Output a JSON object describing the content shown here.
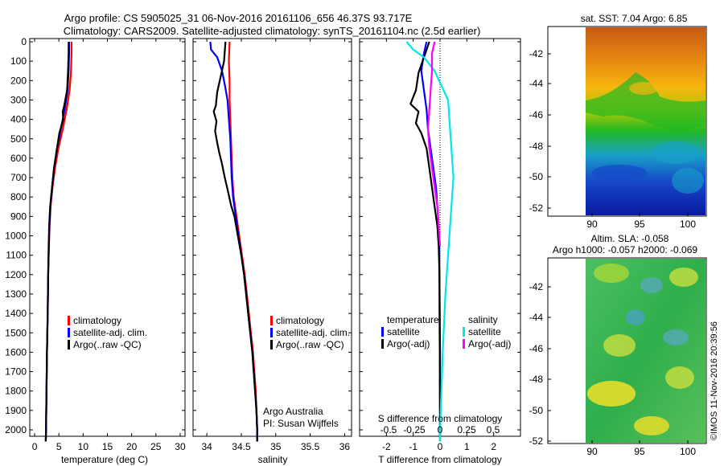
{
  "header": {
    "line1": "Argo profile: CS 5905025_31 06-Nov-2016 20161106_656 46.37S 93.717E",
    "line2": "Climatology: CARS2009. Satellite-adjusted climatology: synTS_20161104.nc (2.5d earlier)"
  },
  "colors": {
    "clim": "#ff0000",
    "sat": "#0000ff",
    "argo": "#000000",
    "sat_s": "#00e5ee",
    "argo_s": "#ff00ff"
  },
  "chart_data": [
    {
      "id": "temperature",
      "type": "line",
      "xlabel": "temperature (deg C)",
      "xlim": [
        -1,
        31
      ],
      "xticks": [
        "0",
        "5",
        "10",
        "15",
        "20",
        "25",
        "30"
      ],
      "ylim": [
        0,
        2080
      ],
      "yticks": [
        "0",
        "100",
        "200",
        "300",
        "400",
        "500",
        "600",
        "700",
        "800",
        "900",
        "1000",
        "1100",
        "1200",
        "1300",
        "1400",
        "1500",
        "1600",
        "1700",
        "1800",
        "1900",
        "2000"
      ],
      "legend": [
        "climatology",
        "satellite-adj. clim.",
        "Argo(..raw -QC)"
      ],
      "series": [
        {
          "name": "climatology",
          "color": "#ff0000",
          "points": [
            [
              7.6,
              0
            ],
            [
              7.6,
              60
            ],
            [
              7.5,
              150
            ],
            [
              7.2,
              250
            ],
            [
              6.6,
              350
            ],
            [
              5.8,
              450
            ],
            [
              4.9,
              550
            ],
            [
              4.2,
              650
            ],
            [
              3.7,
              750
            ],
            [
              3.3,
              850
            ],
            [
              3.1,
              950
            ],
            [
              2.95,
              1050
            ],
            [
              2.8,
              1200
            ],
            [
              2.7,
              1400
            ],
            [
              2.55,
              1600
            ],
            [
              2.45,
              1800
            ],
            [
              2.35,
              2000
            ],
            [
              2.3,
              2060
            ]
          ]
        },
        {
          "name": "satellite-adj. clim.",
          "color": "#0000ff",
          "points": [
            [
              7.1,
              0
            ],
            [
              7.1,
              60
            ],
            [
              7.0,
              150
            ],
            [
              6.8,
              250
            ],
            [
              6.2,
              350
            ],
            [
              5.4,
              450
            ],
            [
              4.6,
              550
            ],
            [
              4.0,
              650
            ],
            [
              3.6,
              750
            ],
            [
              3.25,
              850
            ],
            [
              3.05,
              950
            ],
            [
              2.95,
              1050
            ],
            [
              2.8,
              1200
            ],
            [
              2.7,
              1400
            ],
            [
              2.55,
              1600
            ],
            [
              2.45,
              1800
            ],
            [
              2.35,
              2000
            ],
            [
              2.3,
              2060
            ]
          ]
        },
        {
          "name": "Argo(..raw -QC)",
          "color": "#000000",
          "points": [
            [
              7.0,
              0
            ],
            [
              7.0,
              60
            ],
            [
              6.9,
              150
            ],
            [
              6.7,
              250
            ],
            [
              6.1,
              330
            ],
            [
              5.8,
              360
            ],
            [
              5.9,
              400
            ],
            [
              5.1,
              470
            ],
            [
              4.6,
              550
            ],
            [
              4.0,
              650
            ],
            [
              3.6,
              750
            ],
            [
              3.2,
              850
            ],
            [
              3.0,
              950
            ],
            [
              2.9,
              1050
            ],
            [
              2.8,
              1200
            ],
            [
              2.7,
              1400
            ],
            [
              2.55,
              1600
            ],
            [
              2.45,
              1800
            ],
            [
              2.35,
              2000
            ],
            [
              2.3,
              2060
            ]
          ]
        }
      ]
    },
    {
      "id": "salinity",
      "type": "line",
      "xlabel": "salinity",
      "xlim": [
        33.8,
        36.1
      ],
      "xticks": [
        "34",
        "34.5",
        "35",
        "35.5",
        "36"
      ],
      "ylim": [
        0,
        2080
      ],
      "legend": [
        "climatology",
        "satellite-adj. clim.",
        "Argo(..raw -QC)"
      ],
      "annotations": [
        "Argo Australia",
        "PI: Susan Wijffels"
      ],
      "series": [
        {
          "name": "climatology",
          "color": "#ff0000",
          "points": [
            [
              34.33,
              0
            ],
            [
              34.32,
              100
            ],
            [
              34.33,
              200
            ],
            [
              34.33,
              300
            ],
            [
              34.34,
              400
            ],
            [
              34.35,
              500
            ],
            [
              34.36,
              600
            ],
            [
              34.37,
              700
            ],
            [
              34.39,
              800
            ],
            [
              34.43,
              900
            ],
            [
              34.47,
              1000
            ],
            [
              34.51,
              1100
            ],
            [
              34.55,
              1200
            ],
            [
              34.58,
              1300
            ],
            [
              34.61,
              1400
            ],
            [
              34.64,
              1500
            ],
            [
              34.67,
              1600
            ],
            [
              34.69,
              1700
            ],
            [
              34.71,
              1800
            ],
            [
              34.72,
              1900
            ],
            [
              34.73,
              2000
            ],
            [
              34.73,
              2060
            ]
          ]
        },
        {
          "name": "satellite-adj. clim.",
          "color": "#0000ff",
          "points": [
            [
              34.05,
              0
            ],
            [
              34.06,
              40
            ],
            [
              34.15,
              80
            ],
            [
              34.22,
              150
            ],
            [
              34.26,
              220
            ],
            [
              34.3,
              300
            ],
            [
              34.32,
              400
            ],
            [
              34.34,
              500
            ],
            [
              34.35,
              600
            ],
            [
              34.36,
              700
            ],
            [
              34.38,
              800
            ],
            [
              34.42,
              900
            ],
            [
              34.46,
              1000
            ],
            [
              34.5,
              1100
            ],
            [
              34.54,
              1200
            ],
            [
              34.57,
              1300
            ],
            [
              34.6,
              1400
            ],
            [
              34.63,
              1500
            ],
            [
              34.66,
              1600
            ],
            [
              34.68,
              1700
            ],
            [
              34.7,
              1800
            ],
            [
              34.72,
              1900
            ],
            [
              34.73,
              2000
            ],
            [
              34.73,
              2060
            ]
          ]
        },
        {
          "name": "Argo(..raw -QC)",
          "color": "#000000",
          "points": [
            [
              34.27,
              0
            ],
            [
              34.25,
              100
            ],
            [
              34.2,
              180
            ],
            [
              34.15,
              260
            ],
            [
              34.13,
              330
            ],
            [
              34.1,
              360
            ],
            [
              34.14,
              410
            ],
            [
              34.12,
              460
            ],
            [
              34.15,
              520
            ],
            [
              34.18,
              570
            ],
            [
              34.22,
              630
            ],
            [
              34.26,
              700
            ],
            [
              34.3,
              760
            ],
            [
              34.35,
              840
            ],
            [
              34.4,
              900
            ],
            [
              34.45,
              1000
            ],
            [
              34.5,
              1100
            ],
            [
              34.54,
              1200
            ],
            [
              34.57,
              1300
            ],
            [
              34.6,
              1400
            ],
            [
              34.63,
              1500
            ],
            [
              34.66,
              1600
            ],
            [
              34.68,
              1700
            ],
            [
              34.7,
              1800
            ],
            [
              34.72,
              1900
            ],
            [
              34.73,
              2000
            ],
            [
              34.73,
              2060
            ]
          ]
        }
      ]
    },
    {
      "id": "difference",
      "type": "line",
      "xlabel": "T difference from climatology",
      "top_label": "S difference from climatology",
      "xlim": [
        -3,
        3
      ],
      "xticks": [
        "-2",
        "-1",
        "0",
        "1",
        "2"
      ],
      "s_ticks": [
        "-0.5",
        "-0.25",
        "0",
        "0.25",
        "0.5"
      ],
      "ylim": [
        0,
        2080
      ],
      "legend_titles": [
        "temperature",
        "salinity"
      ],
      "legend_t": [
        "satellite",
        "Argo(-adj)"
      ],
      "legend_s": [
        "satellite",
        "Argo(-adj)"
      ],
      "series": [
        {
          "name": "temperature satellite",
          "color": "#0000ff",
          "points": [
            [
              -0.5,
              0
            ],
            [
              -0.6,
              60
            ],
            [
              -0.7,
              150
            ],
            [
              -0.6,
              250
            ],
            [
              -0.5,
              350
            ],
            [
              -0.45,
              450
            ],
            [
              -0.35,
              550
            ],
            [
              -0.25,
              650
            ],
            [
              -0.15,
              750
            ],
            [
              -0.1,
              850
            ],
            [
              -0.05,
              950
            ],
            [
              -0.03,
              1050
            ],
            [
              -0.02,
              1200
            ],
            [
              -0.02,
              1400
            ],
            [
              -0.01,
              1600
            ],
            [
              -0.01,
              1800
            ],
            [
              0,
              2000
            ],
            [
              0,
              2060
            ]
          ]
        },
        {
          "name": "temperature Argo(-adj)",
          "color": "#000000",
          "points": [
            [
              -0.4,
              0
            ],
            [
              -0.6,
              80
            ],
            [
              -0.8,
              160
            ],
            [
              -0.9,
              250
            ],
            [
              -1.1,
              320
            ],
            [
              -0.8,
              360
            ],
            [
              -0.9,
              420
            ],
            [
              -0.7,
              470
            ],
            [
              -0.5,
              550
            ],
            [
              -0.4,
              650
            ],
            [
              -0.3,
              750
            ],
            [
              -0.2,
              850
            ],
            [
              -0.1,
              950
            ],
            [
              -0.05,
              1050
            ],
            [
              -0.02,
              1200
            ],
            [
              -0.01,
              1400
            ],
            [
              0,
              1600
            ],
            [
              0,
              1800
            ],
            [
              0,
              2000
            ],
            [
              0,
              2060
            ]
          ]
        },
        {
          "name": "salinity satellite",
          "color": "#00e5ee",
          "points": [
            [
              -1.25,
              0
            ],
            [
              -1.0,
              40
            ],
            [
              -0.6,
              80
            ],
            [
              -0.2,
              150
            ],
            [
              0.3,
              300
            ],
            [
              0.4,
              500
            ],
            [
              0.5,
              700
            ],
            [
              0.4,
              900
            ],
            [
              0.3,
              1100
            ],
            [
              0.2,
              1300
            ],
            [
              0.1,
              1600
            ],
            [
              0.05,
              1800
            ],
            [
              0,
              2000
            ],
            [
              0,
              2060
            ]
          ]
        },
        {
          "name": "salinity Argo(-adj)",
          "color": "#ff00ff",
          "points": [
            [
              -0.2,
              0
            ],
            [
              -0.3,
              60
            ],
            [
              -0.3,
              150
            ],
            [
              -0.35,
              250
            ],
            [
              -0.4,
              350
            ],
            [
              -0.45,
              450
            ],
            [
              -0.4,
              550
            ],
            [
              -0.3,
              650
            ],
            [
              -0.2,
              750
            ],
            [
              -0.1,
              850
            ],
            [
              -0.05,
              950
            ],
            [
              0,
              1050
            ]
          ]
        }
      ]
    },
    {
      "id": "sst_map",
      "type": "heatmap",
      "title": "sat. SST: 7.04 Argo: 6.85",
      "xticks": [
        "90",
        "95",
        "100"
      ],
      "yticks": [
        "-42",
        "-44",
        "-46",
        "-48",
        "-50",
        "-52"
      ]
    },
    {
      "id": "sla_map",
      "type": "heatmap",
      "title_line1": "Altim. SLA: -0.058",
      "title_line2": "Argo h1000: -0.057 h2000: -0.069",
      "xticks": [
        "90",
        "95",
        "100"
      ],
      "yticks": [
        "-42",
        "-44",
        "-46",
        "-48",
        "-50",
        "-52"
      ]
    }
  ],
  "stamp": "©IMOS 11-Nov-2016 20:39:56"
}
